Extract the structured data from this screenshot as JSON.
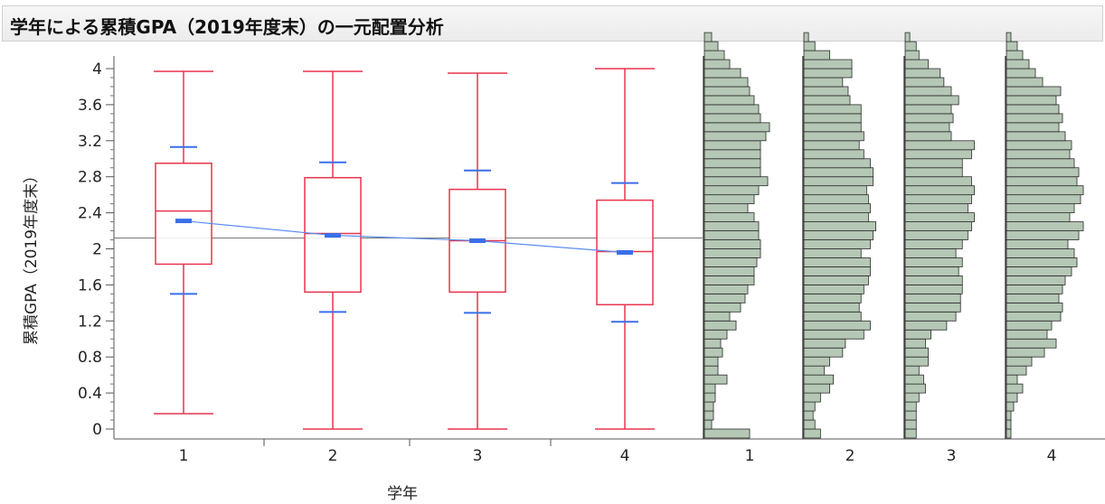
{
  "title": "学年による累積GPA（2019年度末）の一元配置分析",
  "chart_data": {
    "type": "box",
    "xlabel": "学年",
    "ylabel": "累積GPA（2019年度末）",
    "ylim": [
      -0.05,
      4.1
    ],
    "y_ticks": [
      "0",
      "0.4",
      "0.8",
      "1.2",
      "1.6",
      "2",
      "2.4",
      "2.8",
      "3.2",
      "3.6",
      "4"
    ],
    "categories": [
      "1",
      "2",
      "3",
      "4"
    ],
    "grand_mean": 2.12,
    "colors": {
      "box": "#e8344e",
      "mean": "#3a6fe8",
      "grand_mean": "#777777",
      "histogram_fill": "#b5c7b5"
    },
    "groups": [
      {
        "name": "1",
        "min": 0.17,
        "q1": 1.83,
        "median": 2.42,
        "q3": 2.95,
        "max": 3.97,
        "mean": 2.31,
        "sd_upper": 3.13,
        "sd_lower": 1.5
      },
      {
        "name": "2",
        "min": 0.0,
        "q1": 1.52,
        "median": 2.17,
        "q3": 2.79,
        "max": 3.97,
        "mean": 2.15,
        "sd_upper": 2.96,
        "sd_lower": 1.3
      },
      {
        "name": "3",
        "min": 0.0,
        "q1": 1.52,
        "median": 2.09,
        "q3": 2.66,
        "max": 3.95,
        "mean": 2.09,
        "sd_upper": 2.87,
        "sd_lower": 1.29
      },
      {
        "name": "4",
        "min": 0.0,
        "q1": 1.38,
        "median": 1.97,
        "q3": 2.54,
        "max": 4.0,
        "mean": 1.96,
        "sd_upper": 2.73,
        "sd_lower": 1.19
      }
    ],
    "histograms": [
      {
        "name": "1",
        "counts": [
          0.5,
          0.08,
          0.1,
          0.1,
          0.12,
          0.12,
          0.25,
          0.15,
          0.15,
          0.2,
          0.18,
          0.25,
          0.35,
          0.28,
          0.4,
          0.45,
          0.48,
          0.55,
          0.55,
          0.58,
          0.62,
          0.62,
          0.6,
          0.6,
          0.55,
          0.48,
          0.55,
          0.6,
          0.7,
          0.62,
          0.62,
          0.62,
          0.62,
          0.68,
          0.72,
          0.62,
          0.6,
          0.55,
          0.5,
          0.48,
          0.4,
          0.28,
          0.22,
          0.15,
          0.08
        ]
      },
      {
        "name": "2",
        "counts": [
          0.18,
          0.12,
          0.1,
          0.12,
          0.18,
          0.28,
          0.32,
          0.22,
          0.28,
          0.42,
          0.45,
          0.65,
          0.72,
          0.62,
          0.6,
          0.62,
          0.65,
          0.7,
          0.72,
          0.72,
          0.62,
          0.72,
          0.75,
          0.78,
          0.7,
          0.72,
          0.7,
          0.68,
          0.75,
          0.75,
          0.72,
          0.65,
          0.6,
          0.65,
          0.62,
          0.62,
          0.62,
          0.5,
          0.48,
          0.42,
          0.52,
          0.52,
          0.28,
          0.12,
          0.05
        ]
      },
      {
        "name": "3",
        "counts": [
          0.12,
          0.12,
          0.12,
          0.12,
          0.15,
          0.22,
          0.2,
          0.15,
          0.25,
          0.25,
          0.22,
          0.28,
          0.45,
          0.55,
          0.6,
          0.6,
          0.62,
          0.62,
          0.58,
          0.62,
          0.55,
          0.62,
          0.68,
          0.72,
          0.75,
          0.68,
          0.72,
          0.75,
          0.72,
          0.62,
          0.62,
          0.72,
          0.75,
          0.5,
          0.48,
          0.52,
          0.5,
          0.58,
          0.5,
          0.42,
          0.38,
          0.25,
          0.15,
          0.12,
          0.05
        ]
      },
      {
        "name": "4",
        "counts": [
          0.05,
          0.05,
          0.05,
          0.08,
          0.12,
          0.18,
          0.12,
          0.22,
          0.28,
          0.42,
          0.55,
          0.45,
          0.5,
          0.6,
          0.62,
          0.58,
          0.62,
          0.65,
          0.72,
          0.78,
          0.75,
          0.68,
          0.8,
          0.85,
          0.7,
          0.75,
          0.82,
          0.85,
          0.78,
          0.8,
          0.75,
          0.7,
          0.72,
          0.65,
          0.58,
          0.62,
          0.58,
          0.55,
          0.6,
          0.4,
          0.32,
          0.25,
          0.18,
          0.12,
          0.05
        ]
      }
    ]
  }
}
